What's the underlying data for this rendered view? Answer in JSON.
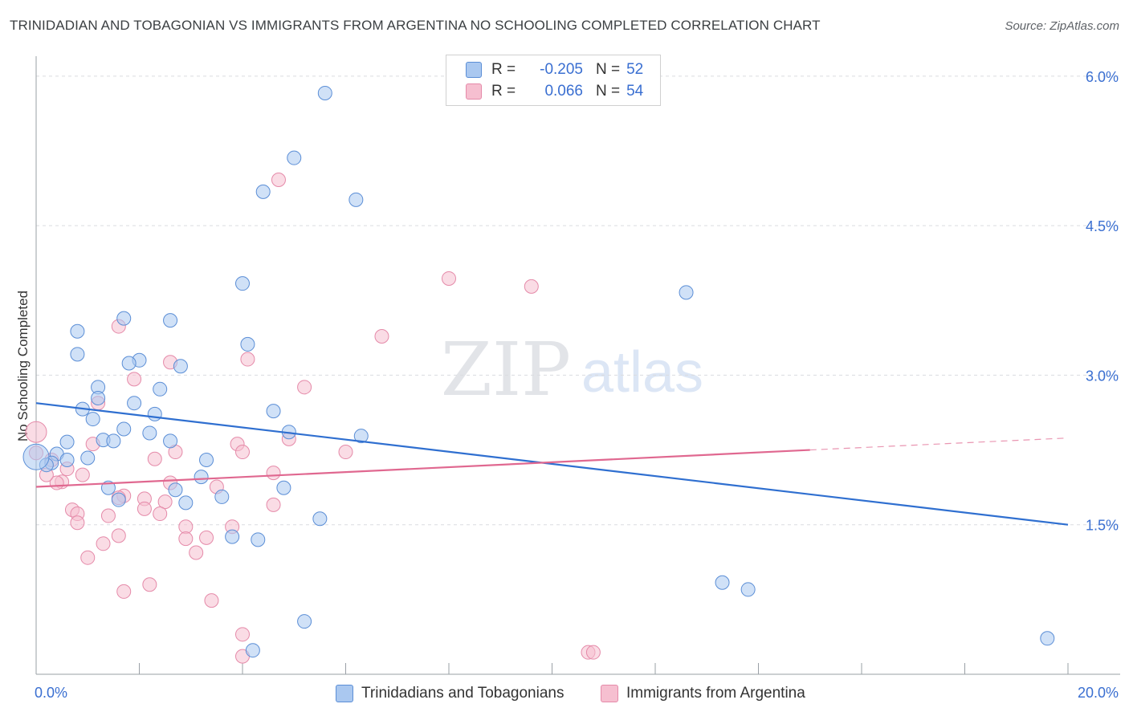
{
  "title": "TRINIDADIAN AND TOBAGONIAN VS IMMIGRANTS FROM ARGENTINA NO SCHOOLING COMPLETED CORRELATION CHART",
  "source": "Source: ZipAtlas.com",
  "watermark": {
    "zip": "ZIP",
    "atlas": "atlas"
  },
  "legend": {
    "r_label": "R =",
    "n_label": "N =",
    "rows": [
      {
        "r_value": "-0.205",
        "n_value": "52"
      },
      {
        "r_value": "0.066",
        "n_value": "54"
      }
    ]
  },
  "colors": {
    "blue_fill": "#aac8f0",
    "blue_stroke": "#5b8ed6",
    "blue_line": "#2f6fd0",
    "pink_fill": "#f6bfd0",
    "pink_stroke": "#e58aa9",
    "pink_line": "#e06890",
    "tick_label": "#3a6fd1",
    "grid": "#dadce0"
  },
  "chart_data": {
    "type": "scatter",
    "title": "TRINIDADIAN AND TOBAGONIAN VS IMMIGRANTS FROM ARGENTINA NO SCHOOLING COMPLETED CORRELATION CHART",
    "xlabel": "",
    "ylabel": "No Schooling Completed",
    "xlim": [
      0,
      20
    ],
    "ylim": [
      0,
      6.2
    ],
    "x_tick_labels": [
      "0.0%",
      "20.0%"
    ],
    "y_ticks": [
      {
        "value": 1.5,
        "label": "1.5%"
      },
      {
        "value": 3.0,
        "label": "3.0%"
      },
      {
        "value": 4.5,
        "label": "4.5%"
      },
      {
        "value": 6.0,
        "label": "6.0%"
      }
    ],
    "legend_position": "top-center",
    "series": [
      {
        "name": "Trinidadians and Tobagonians",
        "r": -0.205,
        "n": 52,
        "trend": {
          "x0": 0.0,
          "y0": 2.72,
          "x1": 20.0,
          "y1": 1.5
        },
        "points": [
          [
            5.6,
            5.83
          ],
          [
            5.0,
            5.18
          ],
          [
            4.4,
            4.84
          ],
          [
            6.2,
            4.76
          ],
          [
            12.6,
            3.83
          ],
          [
            4.0,
            3.92
          ],
          [
            1.7,
            3.57
          ],
          [
            2.6,
            3.55
          ],
          [
            0.8,
            3.44
          ],
          [
            0.8,
            3.21
          ],
          [
            2.0,
            3.15
          ],
          [
            1.8,
            3.12
          ],
          [
            2.8,
            3.09
          ],
          [
            4.1,
            3.31
          ],
          [
            1.2,
            2.88
          ],
          [
            2.4,
            2.86
          ],
          [
            1.2,
            2.77
          ],
          [
            1.9,
            2.72
          ],
          [
            0.9,
            2.66
          ],
          [
            2.3,
            2.61
          ],
          [
            4.6,
            2.64
          ],
          [
            1.1,
            2.56
          ],
          [
            1.7,
            2.46
          ],
          [
            2.2,
            2.42
          ],
          [
            4.9,
            2.43
          ],
          [
            6.3,
            2.39
          ],
          [
            1.3,
            2.35
          ],
          [
            1.5,
            2.34
          ],
          [
            2.6,
            2.34
          ],
          [
            0.6,
            2.33
          ],
          [
            0.4,
            2.21
          ],
          [
            1.0,
            2.17
          ],
          [
            0.6,
            2.15
          ],
          [
            3.3,
            2.15
          ],
          [
            0.3,
            2.12
          ],
          [
            0.2,
            2.1
          ],
          [
            0.0,
            2.18
          ],
          [
            3.2,
            1.98
          ],
          [
            1.4,
            1.87
          ],
          [
            2.7,
            1.85
          ],
          [
            4.8,
            1.87
          ],
          [
            3.6,
            1.78
          ],
          [
            1.6,
            1.75
          ],
          [
            2.9,
            1.72
          ],
          [
            5.5,
            1.56
          ],
          [
            3.8,
            1.38
          ],
          [
            4.3,
            1.35
          ],
          [
            13.3,
            0.92
          ],
          [
            13.8,
            0.85
          ],
          [
            5.2,
            0.53
          ],
          [
            4.2,
            0.24
          ],
          [
            19.6,
            0.36
          ]
        ]
      },
      {
        "name": "Immigrants from Argentina",
        "r": 0.066,
        "n": 54,
        "trend": {
          "x0": 0.0,
          "y0": 1.88,
          "x1": 15.0,
          "y1": 2.25,
          "dash_to_x": 20.0,
          "dash_to_y": 2.37
        },
        "points": [
          [
            4.7,
            4.96
          ],
          [
            8.0,
            3.97
          ],
          [
            9.6,
            3.89
          ],
          [
            1.6,
            3.49
          ],
          [
            6.7,
            3.39
          ],
          [
            2.6,
            3.13
          ],
          [
            4.1,
            3.16
          ],
          [
            1.9,
            2.96
          ],
          [
            5.2,
            2.88
          ],
          [
            1.2,
            2.72
          ],
          [
            0.0,
            2.43
          ],
          [
            4.9,
            2.36
          ],
          [
            1.1,
            2.31
          ],
          [
            3.9,
            2.31
          ],
          [
            6.0,
            2.23
          ],
          [
            4.0,
            2.23
          ],
          [
            2.7,
            2.23
          ],
          [
            0.0,
            2.22
          ],
          [
            2.3,
            2.16
          ],
          [
            0.3,
            2.15
          ],
          [
            0.6,
            2.06
          ],
          [
            4.6,
            2.02
          ],
          [
            0.9,
            2.0
          ],
          [
            0.5,
            1.93
          ],
          [
            0.4,
            1.92
          ],
          [
            2.6,
            1.92
          ],
          [
            3.5,
            1.88
          ],
          [
            1.7,
            1.79
          ],
          [
            1.6,
            1.77
          ],
          [
            2.1,
            1.76
          ],
          [
            2.5,
            1.73
          ],
          [
            4.6,
            1.7
          ],
          [
            2.1,
            1.66
          ],
          [
            0.7,
            1.65
          ],
          [
            0.8,
            1.61
          ],
          [
            2.4,
            1.61
          ],
          [
            1.4,
            1.59
          ],
          [
            0.8,
            1.52
          ],
          [
            2.9,
            1.48
          ],
          [
            3.8,
            1.48
          ],
          [
            1.6,
            1.39
          ],
          [
            3.3,
            1.37
          ],
          [
            2.9,
            1.36
          ],
          [
            1.3,
            1.31
          ],
          [
            3.1,
            1.22
          ],
          [
            1.0,
            1.17
          ],
          [
            2.2,
            0.9
          ],
          [
            1.7,
            0.83
          ],
          [
            3.4,
            0.74
          ],
          [
            4.0,
            0.4
          ],
          [
            4.0,
            0.18
          ],
          [
            10.7,
            0.22
          ],
          [
            10.8,
            0.22
          ],
          [
            0.2,
            2.0
          ]
        ]
      }
    ]
  }
}
